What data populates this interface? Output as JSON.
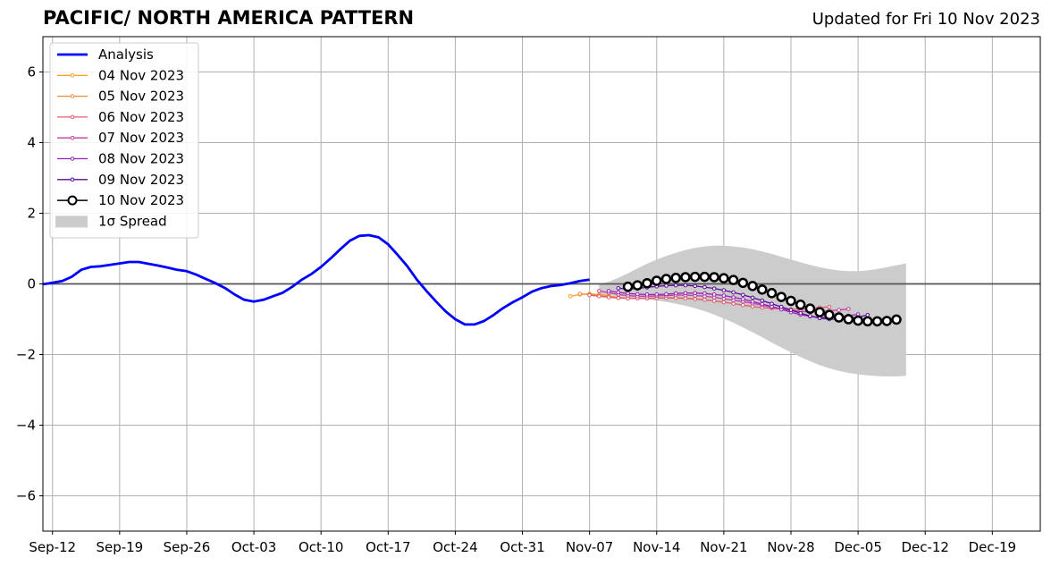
{
  "chart_data": {
    "type": "line",
    "title": "PACIFIC/ NORTH AMERICA PATTERN",
    "subtitle": "Updated for Fri 10 Nov 2023",
    "xlabel": "",
    "ylabel": "",
    "ylim": [
      -7,
      7
    ],
    "yticks": [
      -6,
      -4,
      -2,
      0,
      2,
      4,
      6
    ],
    "ytick_labels": [
      "−6",
      "−4",
      "−2",
      "0",
      "2",
      "4",
      "6"
    ],
    "xlim": [
      "2023-09-11",
      "2023-12-24"
    ],
    "xticks": [
      "2023-09-12",
      "2023-09-19",
      "2023-09-26",
      "2023-10-03",
      "2023-10-10",
      "2023-10-17",
      "2023-10-24",
      "2023-10-31",
      "2023-11-07",
      "2023-11-14",
      "2023-11-21",
      "2023-11-28",
      "2023-12-05",
      "2023-12-12",
      "2023-12-19"
    ],
    "xtick_labels": [
      "Sep-12",
      "Sep-19",
      "Sep-26",
      "Oct-03",
      "Oct-10",
      "Oct-17",
      "Oct-24",
      "Oct-31",
      "Nov-07",
      "Nov-14",
      "Nov-21",
      "Nov-28",
      "Dec-05",
      "Dec-12",
      "Dec-19"
    ],
    "grid": true,
    "legend_position": "top-left",
    "analysis": {
      "name": "Analysis",
      "color": "#0000ff",
      "start": "2023-09-11",
      "values": [
        -0.01,
        0.03,
        0.08,
        0.2,
        0.4,
        0.48,
        0.5,
        0.54,
        0.58,
        0.62,
        0.62,
        0.57,
        0.52,
        0.46,
        0.4,
        0.36,
        0.26,
        0.14,
        0.02,
        -0.12,
        -0.3,
        -0.45,
        -0.5,
        -0.45,
        -0.35,
        -0.25,
        -0.08,
        0.12,
        0.28,
        0.48,
        0.72,
        0.98,
        1.22,
        1.36,
        1.38,
        1.32,
        1.12,
        0.82,
        0.5,
        0.12,
        -0.2,
        -0.5,
        -0.78,
        -1.0,
        -1.15,
        -1.15,
        -1.05,
        -0.88,
        -0.68,
        -0.52,
        -0.38,
        -0.22,
        -0.12,
        -0.06,
        -0.03,
        0.02,
        0.08,
        0.12
      ]
    },
    "forecasts": [
      {
        "name": "04 Nov 2023",
        "color": "#f8a12f",
        "start": "2023-11-05",
        "values": [
          -0.35,
          -0.3,
          -0.28,
          -0.3,
          -0.34,
          -0.38
        ]
      },
      {
        "name": "05 Nov 2023",
        "color": "#ee8a3e",
        "start": "2023-11-06",
        "values": [
          -0.28,
          -0.3,
          -0.33,
          -0.36,
          -0.38,
          -0.4,
          -0.41,
          -0.41,
          -0.4,
          -0.39,
          -0.39,
          -0.4,
          -0.42,
          -0.45,
          -0.48,
          -0.52
        ]
      },
      {
        "name": "06 Nov 2023",
        "color": "#dd5e6e",
        "start": "2023-11-07",
        "values": [
          -0.32,
          -0.35,
          -0.38,
          -0.4,
          -0.41,
          -0.41,
          -0.41,
          -0.4,
          -0.4,
          -0.4,
          -0.41,
          -0.43,
          -0.45,
          -0.48,
          -0.52,
          -0.56,
          -0.6,
          -0.64,
          -0.67,
          -0.69,
          -0.71,
          -0.72,
          -0.72,
          -0.7,
          -0.67,
          -0.65
        ]
      },
      {
        "name": "07 Nov 2023",
        "color": "#c43da0",
        "start": "2023-11-08",
        "values": [
          -0.2,
          -0.25,
          -0.3,
          -0.33,
          -0.35,
          -0.35,
          -0.34,
          -0.33,
          -0.32,
          -0.32,
          -0.33,
          -0.35,
          -0.38,
          -0.42,
          -0.46,
          -0.5,
          -0.55,
          -0.6,
          -0.66,
          -0.71,
          -0.75,
          -0.78,
          -0.79,
          -0.78,
          -0.76,
          -0.74,
          -0.71
        ]
      },
      {
        "name": "08 Nov 2023",
        "color": "#9423b5",
        "start": "2023-11-09",
        "values": [
          -0.2,
          -0.24,
          -0.27,
          -0.29,
          -0.3,
          -0.3,
          -0.29,
          -0.27,
          -0.26,
          -0.26,
          -0.27,
          -0.3,
          -0.33,
          -0.38,
          -0.43,
          -0.5,
          -0.57,
          -0.64,
          -0.72,
          -0.8,
          -0.87,
          -0.92,
          -0.95,
          -0.95,
          -0.93,
          -0.9,
          -0.86
        ]
      },
      {
        "name": "09 Nov 2023",
        "color": "#5a0a9a",
        "start": "2023-11-10",
        "values": [
          -0.12,
          -0.15,
          -0.13,
          -0.1,
          -0.07,
          -0.05,
          -0.04,
          -0.04,
          -0.06,
          -0.09,
          -0.13,
          -0.18,
          -0.24,
          -0.31,
          -0.39,
          -0.47,
          -0.56,
          -0.65,
          -0.74,
          -0.83,
          -0.91,
          -0.97,
          -1.0,
          -1.0,
          -0.98,
          -0.94,
          -0.88
        ]
      },
      {
        "name": "10 Nov 2023",
        "color": "#000000",
        "start": "2023-11-11",
        "values": [
          -0.08,
          -0.04,
          0.02,
          0.09,
          0.14,
          0.17,
          0.19,
          0.2,
          0.2,
          0.19,
          0.16,
          0.11,
          0.03,
          -0.06,
          -0.16,
          -0.26,
          -0.37,
          -0.48,
          -0.59,
          -0.7,
          -0.8,
          -0.88,
          -0.95,
          -1.0,
          -1.04,
          -1.06,
          -1.06,
          -1.05,
          -1.01
        ]
      }
    ],
    "spread": {
      "name": "1σ Spread",
      "color": "#cccccc",
      "start": "2023-11-08",
      "upper": [
        0.0,
        0.06,
        0.17,
        0.3,
        0.44,
        0.57,
        0.69,
        0.79,
        0.88,
        0.96,
        1.02,
        1.06,
        1.08,
        1.08,
        1.06,
        1.03,
        0.98,
        0.92,
        0.85,
        0.77,
        0.69,
        0.61,
        0.54,
        0.47,
        0.42,
        0.38,
        0.36,
        0.36,
        0.38,
        0.42,
        0.47,
        0.53,
        0.58
      ],
      "lower": [
        -0.3,
        -0.32,
        -0.35,
        -0.38,
        -0.41,
        -0.44,
        -0.47,
        -0.51,
        -0.56,
        -0.62,
        -0.69,
        -0.77,
        -0.87,
        -0.98,
        -1.1,
        -1.23,
        -1.37,
        -1.51,
        -1.66,
        -1.8,
        -1.94,
        -2.07,
        -2.19,
        -2.3,
        -2.39,
        -2.46,
        -2.52,
        -2.56,
        -2.59,
        -2.61,
        -2.62,
        -2.62,
        -2.6
      ]
    }
  }
}
